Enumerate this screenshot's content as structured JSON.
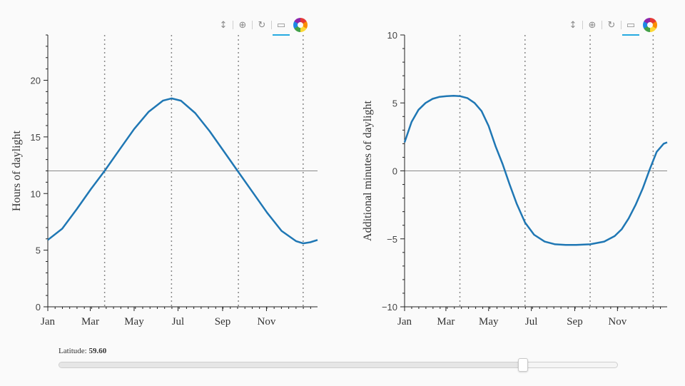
{
  "toolbar": {
    "tools": [
      {
        "icon": "vertical-pan-icon",
        "glyph": "↕"
      },
      {
        "icon": "wheel-zoom-icon",
        "glyph": "⊕"
      },
      {
        "icon": "reset-icon",
        "glyph": "↻"
      },
      {
        "icon": "hover-tooltip-icon",
        "glyph": "▭"
      }
    ],
    "logo_icon": "bokeh-logo-icon",
    "accent": "#26aae1"
  },
  "slider": {
    "label": "Latitude:",
    "value_text": "59.60",
    "value": 59.6,
    "min": -90,
    "max": 90
  },
  "months": [
    {
      "label": "Jan",
      "day": 0
    },
    {
      "label": "Mar",
      "day": 59
    },
    {
      "label": "May",
      "day": 120
    },
    {
      "label": "Jul",
      "day": 181
    },
    {
      "label": "Sep",
      "day": 243
    },
    {
      "label": "Nov",
      "day": 304
    }
  ],
  "chart_data": [
    {
      "type": "line",
      "ylabel": "Hours of daylight",
      "xlim": [
        0,
        375
      ],
      "ylim": [
        0,
        24
      ],
      "yticks": [
        0,
        5,
        10,
        15,
        20
      ],
      "ytick_labels": [
        "0",
        "5",
        "10",
        "15",
        "20"
      ],
      "reference_line": 12,
      "event_days": [
        79,
        172,
        265,
        355
      ],
      "line_color": "#1f77b4",
      "x": [
        0,
        20,
        40,
        60,
        79,
        100,
        120,
        140,
        160,
        172,
        185,
        205,
        225,
        245,
        265,
        285,
        305,
        325,
        345,
        355,
        365,
        375
      ],
      "y": [
        5.9,
        6.9,
        8.6,
        10.4,
        12.0,
        13.9,
        15.7,
        17.2,
        18.2,
        18.4,
        18.2,
        17.1,
        15.5,
        13.7,
        11.9,
        10.1,
        8.3,
        6.7,
        5.8,
        5.6,
        5.7,
        5.9
      ]
    },
    {
      "type": "line",
      "ylabel": "Additional minutes of daylight",
      "xlim": [
        0,
        375
      ],
      "ylim": [
        -10,
        10
      ],
      "yticks": [
        -10,
        -5,
        0,
        5,
        10
      ],
      "ytick_labels": [
        "−10",
        "−5",
        "0",
        "5",
        "10"
      ],
      "reference_line": 0,
      "event_days": [
        79,
        172,
        265,
        355
      ],
      "line_color": "#1f77b4",
      "x": [
        0,
        10,
        20,
        30,
        40,
        50,
        60,
        70,
        79,
        90,
        100,
        110,
        120,
        130,
        140,
        150,
        160,
        172,
        185,
        200,
        215,
        230,
        245,
        265,
        285,
        300,
        310,
        320,
        330,
        340,
        350,
        360,
        370,
        375
      ],
      "y": [
        2.1,
        3.6,
        4.5,
        5.0,
        5.3,
        5.45,
        5.5,
        5.52,
        5.5,
        5.35,
        5.0,
        4.4,
        3.3,
        1.8,
        0.5,
        -1.0,
        -2.4,
        -3.8,
        -4.7,
        -5.2,
        -5.4,
        -5.45,
        -5.45,
        -5.4,
        -5.2,
        -4.8,
        -4.3,
        -3.5,
        -2.5,
        -1.3,
        0.1,
        1.4,
        2.0,
        2.1
      ]
    }
  ]
}
